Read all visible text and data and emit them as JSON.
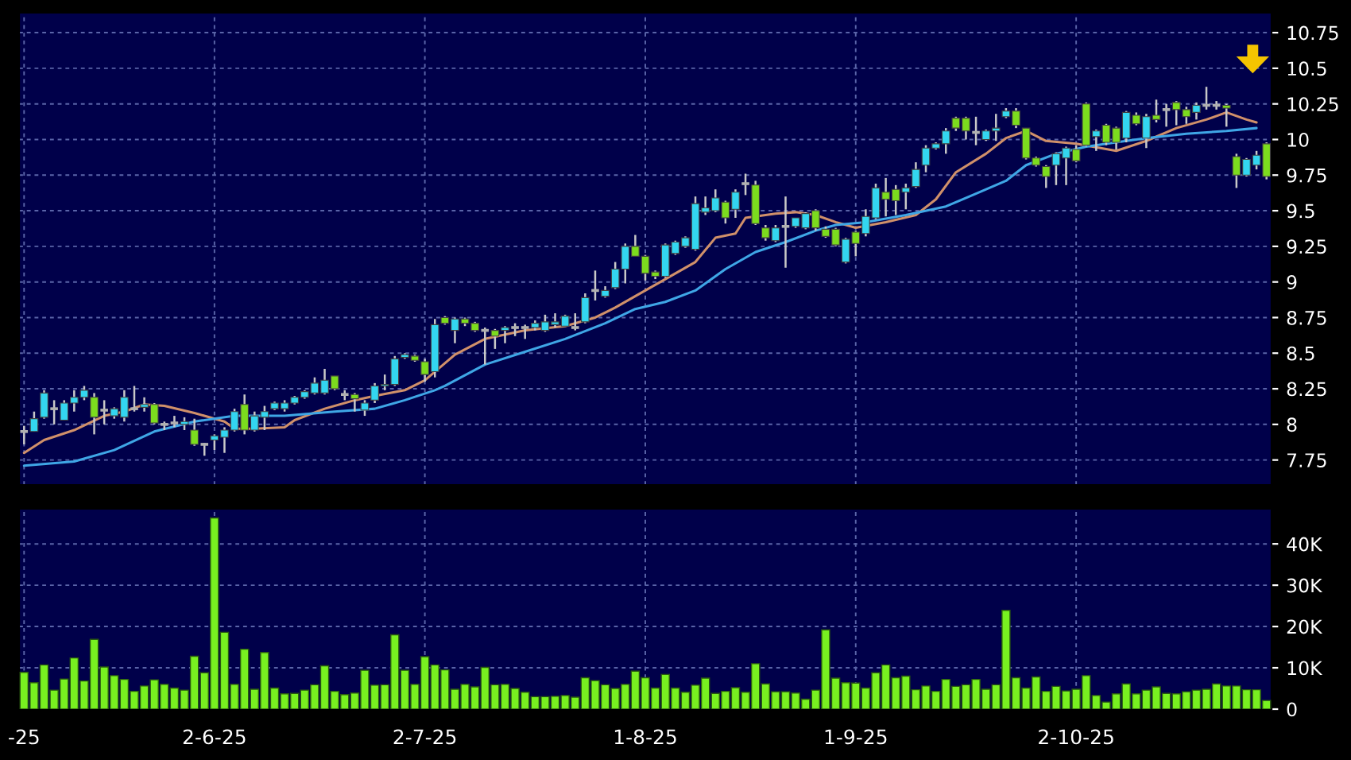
{
  "chart_data": [
    {
      "type": "candlestick",
      "categories": [
        null,
        null,
        null,
        null,
        null,
        null,
        null,
        null,
        null,
        null,
        null,
        null,
        null,
        null,
        null,
        null,
        null,
        null,
        null,
        null,
        null,
        null,
        null,
        null,
        null,
        null,
        null,
        null,
        null,
        null,
        null,
        null,
        null,
        null,
        null,
        null,
        null,
        null,
        null,
        null,
        null,
        null,
        null,
        null,
        null,
        null,
        null,
        null,
        null,
        null,
        null,
        null,
        null,
        null,
        null,
        null,
        null,
        null,
        null,
        null,
        null,
        null,
        null,
        null,
        null,
        null,
        null,
        null,
        null,
        null,
        null,
        null,
        null,
        null,
        null,
        null,
        null,
        null,
        null,
        null,
        null,
        null,
        null,
        null,
        null,
        null,
        null,
        null,
        null,
        null,
        null,
        null,
        null,
        null,
        null,
        null,
        null,
        null,
        null,
        null,
        null,
        null,
        null,
        null,
        null,
        null,
        null,
        null,
        null,
        null,
        null,
        null,
        null,
        null,
        null,
        null,
        null,
        null,
        null,
        null,
        null,
        null,
        null,
        null,
        null
      ],
      "ohlc": [
        [
          7.95,
          7.99,
          7.86,
          7.95
        ],
        [
          7.95,
          8.09,
          7.95,
          8.04
        ],
        [
          8.05,
          8.24,
          8.04,
          8.22
        ],
        [
          8.11,
          8.17,
          8.0,
          8.11
        ],
        [
          8.03,
          8.17,
          8.03,
          8.15
        ],
        [
          8.15,
          8.24,
          8.09,
          8.19
        ],
        [
          8.19,
          8.27,
          8.17,
          8.24
        ],
        [
          8.19,
          8.22,
          7.93,
          8.05
        ],
        [
          8.1,
          8.17,
          8.0,
          8.1
        ],
        [
          8.06,
          8.12,
          8.04,
          8.11
        ],
        [
          8.05,
          8.24,
          8.02,
          8.19
        ],
        [
          8.11,
          8.27,
          8.09,
          8.11
        ],
        [
          8.12,
          8.19,
          8.09,
          8.14
        ],
        [
          8.14,
          8.15,
          8.0,
          8.01
        ],
        [
          8.0,
          8.02,
          7.96,
          8.0
        ],
        [
          8.01,
          8.06,
          7.98,
          8.01
        ],
        [
          8.0,
          8.05,
          7.96,
          8.02
        ],
        [
          7.96,
          8.04,
          7.85,
          7.86
        ],
        [
          7.86,
          7.87,
          7.78,
          7.86
        ],
        [
          7.89,
          7.93,
          7.82,
          7.92
        ],
        [
          7.91,
          7.98,
          7.8,
          7.96
        ],
        [
          7.96,
          8.11,
          7.95,
          8.09
        ],
        [
          8.14,
          8.21,
          7.93,
          7.96
        ],
        [
          7.96,
          8.09,
          7.95,
          8.06
        ],
        [
          8.05,
          8.13,
          7.96,
          8.09
        ],
        [
          8.11,
          8.16,
          8.1,
          8.15
        ],
        [
          8.11,
          8.17,
          8.09,
          8.15
        ],
        [
          8.15,
          8.2,
          8.14,
          8.19
        ],
        [
          8.19,
          8.24,
          8.18,
          8.23
        ],
        [
          8.22,
          8.33,
          8.21,
          8.29
        ],
        [
          8.22,
          8.39,
          8.21,
          8.31
        ],
        [
          8.34,
          8.34,
          8.24,
          8.25
        ],
        [
          8.21,
          8.24,
          8.17,
          8.21
        ],
        [
          8.21,
          8.22,
          8.09,
          8.18
        ],
        [
          8.1,
          8.17,
          8.06,
          8.15
        ],
        [
          8.17,
          8.29,
          8.15,
          8.27
        ],
        [
          8.27,
          8.35,
          8.24,
          8.28
        ],
        [
          8.28,
          8.48,
          8.27,
          8.46
        ],
        [
          8.47,
          8.5,
          8.46,
          8.49
        ],
        [
          8.48,
          8.49,
          8.44,
          8.45
        ],
        [
          8.44,
          8.46,
          8.3,
          8.35
        ],
        [
          8.37,
          8.74,
          8.33,
          8.7
        ],
        [
          8.75,
          8.76,
          8.7,
          8.71
        ],
        [
          8.66,
          8.75,
          8.57,
          8.74
        ],
        [
          8.74,
          8.75,
          8.69,
          8.71
        ],
        [
          8.71,
          8.72,
          8.65,
          8.66
        ],
        [
          8.66,
          8.68,
          8.42,
          8.66
        ],
        [
          8.66,
          8.67,
          8.53,
          8.62
        ],
        [
          8.66,
          8.69,
          8.57,
          8.68
        ],
        [
          8.68,
          8.71,
          8.62,
          8.68
        ],
        [
          8.68,
          8.7,
          8.6,
          8.68
        ],
        [
          8.68,
          8.73,
          8.66,
          8.71
        ],
        [
          8.66,
          8.77,
          8.65,
          8.72
        ],
        [
          8.7,
          8.78,
          8.68,
          8.72
        ],
        [
          8.69,
          8.77,
          8.69,
          8.76
        ],
        [
          8.68,
          8.78,
          8.66,
          8.68
        ],
        [
          8.72,
          8.92,
          8.71,
          8.89
        ],
        [
          8.94,
          9.08,
          8.87,
          8.94
        ],
        [
          8.9,
          8.97,
          8.89,
          8.94
        ],
        [
          8.96,
          9.14,
          8.95,
          9.09
        ],
        [
          9.09,
          9.27,
          8.99,
          9.25
        ],
        [
          9.25,
          9.33,
          9.18,
          9.18
        ],
        [
          9.18,
          9.19,
          9.01,
          9.06
        ],
        [
          9.07,
          9.08,
          9.02,
          9.04
        ],
        [
          9.04,
          9.27,
          9.03,
          9.26
        ],
        [
          9.2,
          9.29,
          9.19,
          9.28
        ],
        [
          9.25,
          9.32,
          9.24,
          9.31
        ],
        [
          9.23,
          9.6,
          9.22,
          9.55
        ],
        [
          9.49,
          9.6,
          9.47,
          9.52
        ],
        [
          9.5,
          9.65,
          9.49,
          9.59
        ],
        [
          9.56,
          9.57,
          9.41,
          9.45
        ],
        [
          9.51,
          9.65,
          9.45,
          9.63
        ],
        [
          9.69,
          9.76,
          9.61,
          9.69
        ],
        [
          9.68,
          9.71,
          9.4,
          9.41
        ],
        [
          9.38,
          9.4,
          9.29,
          9.31
        ],
        [
          9.29,
          9.4,
          9.28,
          9.38
        ],
        [
          9.39,
          9.6,
          9.1,
          9.39
        ],
        [
          9.39,
          9.45,
          9.38,
          9.45
        ],
        [
          9.38,
          9.49,
          9.37,
          9.48
        ],
        [
          9.5,
          9.51,
          9.36,
          9.38
        ],
        [
          9.37,
          9.39,
          9.31,
          9.32
        ],
        [
          9.37,
          9.38,
          9.25,
          9.26
        ],
        [
          9.14,
          9.31,
          9.13,
          9.3
        ],
        [
          9.35,
          9.36,
          9.18,
          9.27
        ],
        [
          9.34,
          9.51,
          9.32,
          9.46
        ],
        [
          9.45,
          9.69,
          9.44,
          9.66
        ],
        [
          9.63,
          9.73,
          9.46,
          9.58
        ],
        [
          9.65,
          9.68,
          9.47,
          9.57
        ],
        [
          9.63,
          9.69,
          9.51,
          9.66
        ],
        [
          9.67,
          9.84,
          9.66,
          9.79
        ],
        [
          9.82,
          9.96,
          9.77,
          9.94
        ],
        [
          9.94,
          9.98,
          9.93,
          9.97
        ],
        [
          9.97,
          10.08,
          9.9,
          10.06
        ],
        [
          10.15,
          10.16,
          10.06,
          10.08
        ],
        [
          10.15,
          10.16,
          10.0,
          10.06
        ],
        [
          10.05,
          10.16,
          9.96,
          10.05
        ],
        [
          10.0,
          10.07,
          9.99,
          10.06
        ],
        [
          10.06,
          10.18,
          9.99,
          10.08
        ],
        [
          10.16,
          10.22,
          10.15,
          10.2
        ],
        [
          10.2,
          10.22,
          10.08,
          10.1
        ],
        [
          10.08,
          10.08,
          9.86,
          9.87
        ],
        [
          9.87,
          9.88,
          9.81,
          9.82
        ],
        [
          9.81,
          9.82,
          9.66,
          9.74
        ],
        [
          9.82,
          9.91,
          9.68,
          9.9
        ],
        [
          9.87,
          9.95,
          9.68,
          9.94
        ],
        [
          9.93,
          9.96,
          9.84,
          9.85
        ],
        [
          10.25,
          10.26,
          9.95,
          9.96
        ],
        [
          10.02,
          10.07,
          9.92,
          10.06
        ],
        [
          10.1,
          10.11,
          9.96,
          9.98
        ],
        [
          10.08,
          10.09,
          9.93,
          9.98
        ],
        [
          10.01,
          10.2,
          9.98,
          10.19
        ],
        [
          10.17,
          10.19,
          10.1,
          10.11
        ],
        [
          10.01,
          10.18,
          9.94,
          10.16
        ],
        [
          10.17,
          10.28,
          10.12,
          10.14
        ],
        [
          10.21,
          10.25,
          10.09,
          10.21
        ],
        [
          10.26,
          10.27,
          10.1,
          10.21
        ],
        [
          10.21,
          10.23,
          10.11,
          10.16
        ],
        [
          10.19,
          10.26,
          10.14,
          10.24
        ],
        [
          10.24,
          10.37,
          10.21,
          10.24
        ],
        [
          10.24,
          10.27,
          10.21,
          10.24
        ],
        [
          10.24,
          10.25,
          10.09,
          10.22
        ],
        [
          9.88,
          9.9,
          9.66,
          9.75
        ],
        [
          9.75,
          9.87,
          9.74,
          9.86
        ],
        [
          9.82,
          9.92,
          9.79,
          9.89
        ],
        [
          9.97,
          9.98,
          9.72,
          9.74
        ]
      ],
      "colors": [
        "#b0b0b0",
        "#33d6f0",
        "#33d6f0",
        "#b0b0b0",
        "#33d6f0",
        "#33d6f0",
        "#33d6f0",
        "#7cdc1e",
        "#b0b0b0",
        "#33d6f0",
        "#33d6f0",
        "#b0b0b0",
        "#33d6f0",
        "#7cdc1e",
        "#b0b0b0",
        "#b0b0b0",
        "#33d6f0",
        "#7cdc1e",
        "#b0b0b0",
        "#33d6f0",
        "#33d6f0",
        "#33d6f0",
        "#7cdc1e",
        "#33d6f0",
        "#33d6f0",
        "#33d6f0",
        "#33d6f0",
        "#33d6f0",
        "#33d6f0",
        "#33d6f0",
        "#33d6f0",
        "#7cdc1e",
        "#b0b0b0",
        "#7cdc1e",
        "#33d6f0",
        "#33d6f0",
        "#33d6f0",
        "#33d6f0",
        "#33d6f0",
        "#7cdc1e",
        "#7cdc1e",
        "#33d6f0",
        "#7cdc1e",
        "#33d6f0",
        "#7cdc1e",
        "#7cdc1e",
        "#b0b0b0",
        "#7cdc1e",
        "#33d6f0",
        "#b0b0b0",
        "#b0b0b0",
        "#33d6f0",
        "#33d6f0",
        "#33d6f0",
        "#33d6f0",
        "#b0b0b0",
        "#33d6f0",
        "#b0b0b0",
        "#33d6f0",
        "#33d6f0",
        "#33d6f0",
        "#7cdc1e",
        "#7cdc1e",
        "#7cdc1e",
        "#33d6f0",
        "#33d6f0",
        "#33d6f0",
        "#33d6f0",
        "#33d6f0",
        "#33d6f0",
        "#7cdc1e",
        "#33d6f0",
        "#b0b0b0",
        "#7cdc1e",
        "#7cdc1e",
        "#33d6f0",
        "#b0b0b0",
        "#33d6f0",
        "#33d6f0",
        "#7cdc1e",
        "#7cdc1e",
        "#7cdc1e",
        "#33d6f0",
        "#7cdc1e",
        "#33d6f0",
        "#33d6f0",
        "#7cdc1e",
        "#7cdc1e",
        "#33d6f0",
        "#33d6f0",
        "#33d6f0",
        "#33d6f0",
        "#33d6f0",
        "#7cdc1e",
        "#7cdc1e",
        "#b0b0b0",
        "#33d6f0",
        "#33d6f0",
        "#33d6f0",
        "#7cdc1e",
        "#7cdc1e",
        "#7cdc1e",
        "#7cdc1e",
        "#33d6f0",
        "#33d6f0",
        "#7cdc1e",
        "#7cdc1e",
        "#33d6f0",
        "#7cdc1e",
        "#7cdc1e",
        "#33d6f0",
        "#7cdc1e",
        "#33d6f0",
        "#7cdc1e",
        "#b0b0b0",
        "#7cdc1e",
        "#7cdc1e",
        "#33d6f0",
        "#b0b0b0",
        "#b0b0b0",
        "#7cdc1e",
        "#7cdc1e",
        "#33d6f0",
        "#33d6f0",
        "#7cdc1e"
      ],
      "series": [
        {
          "type": "line",
          "color": "#d0906a",
          "values": [
            7.8,
            null,
            7.89,
            null,
            null,
            7.96,
            null,
            null,
            8.06,
            null,
            8.09,
            null,
            8.14,
            null,
            8.13,
            null,
            null,
            8.08,
            null,
            null,
            8.02,
            7.97,
            null,
            7.97,
            null,
            null,
            7.98,
            8.03,
            null,
            null,
            8.11,
            null,
            null,
            8.17,
            null,
            8.2,
            null,
            null,
            8.24,
            null,
            8.31,
            null,
            null,
            8.49,
            null,
            null,
            8.6,
            null,
            null,
            null,
            8.66,
            null,
            null,
            null,
            8.69,
            null,
            null,
            8.75,
            null,
            8.82,
            null,
            null,
            8.94,
            null,
            9.02,
            null,
            null,
            9.14,
            null,
            9.31,
            null,
            9.34,
            9.45,
            null,
            null,
            9.48,
            null,
            9.49,
            null,
            9.47,
            null,
            9.42,
            null,
            9.38,
            null,
            null,
            9.42,
            null,
            null,
            9.47,
            null,
            9.58,
            null,
            9.77,
            null,
            null,
            9.9,
            null,
            10.01,
            null,
            10.06,
            null,
            9.99,
            null,
            null,
            9.97,
            null,
            null,
            null,
            9.92,
            null,
            null,
            9.99,
            null,
            null,
            10.08,
            null,
            null,
            10.14,
            null,
            10.19,
            null,
            10.14,
            10.12,
            null
          ]
        },
        {
          "type": "line",
          "color": "#3fa6e6",
          "values": [
            7.71,
            null,
            null,
            null,
            null,
            7.74,
            null,
            null,
            null,
            7.82,
            null,
            null,
            null,
            7.95,
            null,
            null,
            null,
            8.02,
            null,
            null,
            null,
            8.06,
            null,
            null,
            null,
            null,
            8.06,
            null,
            null,
            null,
            null,
            8.09,
            null,
            null,
            null,
            8.11,
            null,
            null,
            8.17,
            null,
            null,
            8.24,
            8.27,
            null,
            null,
            null,
            8.42,
            null,
            null,
            null,
            8.51,
            null,
            null,
            null,
            8.6,
            null,
            null,
            null,
            8.71,
            null,
            null,
            8.81,
            null,
            null,
            8.86,
            null,
            null,
            8.94,
            null,
            null,
            9.09,
            null,
            null,
            9.21,
            null,
            null,
            9.28,
            null,
            null,
            9.36,
            null,
            9.4,
            null,
            null,
            9.42,
            null,
            null,
            null,
            9.47,
            null,
            null,
            null,
            9.53,
            null,
            null,
            9.62,
            null,
            null,
            9.71,
            null,
            9.82,
            null,
            null,
            9.9,
            null,
            null,
            9.95,
            null,
            null,
            9.98,
            null,
            null,
            10.01,
            null,
            null,
            null,
            10.04,
            null,
            null,
            null,
            10.06,
            null,
            null,
            10.08,
            null
          ]
        }
      ],
      "ylim": [
        7.575,
        10.89
      ],
      "yticks": [
        7.75,
        8,
        8.25,
        8.5,
        8.75,
        9,
        9.25,
        9.5,
        9.75,
        10,
        10.25,
        10.5,
        10.75
      ],
      "grid": true,
      "tick_labels": "y"
    },
    {
      "type": "bar",
      "categories": [
        "-25",
        null,
        null,
        null,
        null,
        null,
        null,
        null,
        null,
        null,
        null,
        null,
        null,
        null,
        null,
        null,
        null,
        null,
        null,
        "2-6-25",
        null,
        null,
        null,
        null,
        null,
        null,
        null,
        null,
        null,
        null,
        null,
        null,
        null,
        null,
        null,
        null,
        null,
        null,
        null,
        null,
        "2-7-25",
        null,
        null,
        null,
        null,
        null,
        null,
        null,
        null,
        null,
        null,
        null,
        null,
        null,
        null,
        null,
        null,
        null,
        null,
        null,
        null,
        null,
        "1-8-25",
        null,
        null,
        null,
        null,
        null,
        null,
        null,
        null,
        null,
        null,
        null,
        null,
        null,
        null,
        null,
        null,
        null,
        null,
        null,
        null,
        "1-9-25",
        null,
        null,
        null,
        null,
        null,
        null,
        null,
        null,
        null,
        null,
        null,
        null,
        null,
        null,
        null,
        null,
        null,
        null,
        null,
        null,
        null,
        "2-10-25",
        null,
        null,
        null,
        null,
        null,
        null,
        null,
        null,
        null,
        null,
        null,
        null,
        null,
        null,
        null,
        null,
        null,
        null,
        null
      ],
      "values": [
        8900,
        6400,
        10700,
        4600,
        7300,
        12400,
        6800,
        16900,
        10200,
        8100,
        7200,
        4300,
        5600,
        7100,
        6000,
        5100,
        4600,
        12800,
        8800,
        46300,
        18600,
        6000,
        14500,
        4800,
        13700,
        5100,
        3700,
        3800,
        4600,
        5900,
        10500,
        4300,
        3500,
        3900,
        9400,
        5800,
        5900,
        18000,
        9400,
        6000,
        12700,
        10700,
        9500,
        4800,
        6000,
        5400,
        10100,
        5900,
        6000,
        5000,
        4100,
        3000,
        3000,
        3100,
        3300,
        2900,
        7600,
        6900,
        5900,
        5000,
        6000,
        9200,
        7600,
        5100,
        8400,
        5100,
        4100,
        5800,
        7500,
        3800,
        4300,
        5200,
        4100,
        11000,
        6100,
        4200,
        4200,
        3900,
        2400,
        4600,
        19200,
        7500,
        6400,
        6300,
        5100,
        8800,
        10700,
        7600,
        8000,
        4700,
        5600,
        4300,
        7200,
        5500,
        5900,
        7200,
        4800,
        5900,
        23900,
        7600,
        5100,
        7800,
        4300,
        5500,
        4400,
        4800,
        8100,
        3300,
        1700,
        3700,
        6100,
        3700,
        4600,
        5400,
        3800,
        3700,
        4200,
        4600,
        4800,
        6100,
        5600,
        5600,
        4700,
        4700,
        2100
      ],
      "color": "#78f020",
      "ylim": [
        0,
        48500
      ],
      "yticks": [
        {
          "value": 0,
          "label": "0"
        },
        {
          "value": 10000,
          "label": "10K"
        },
        {
          "value": 20000,
          "label": "20K"
        },
        {
          "value": 30000,
          "label": "30K"
        },
        {
          "value": 40000,
          "label": "40K"
        }
      ],
      "grid": true
    }
  ]
}
